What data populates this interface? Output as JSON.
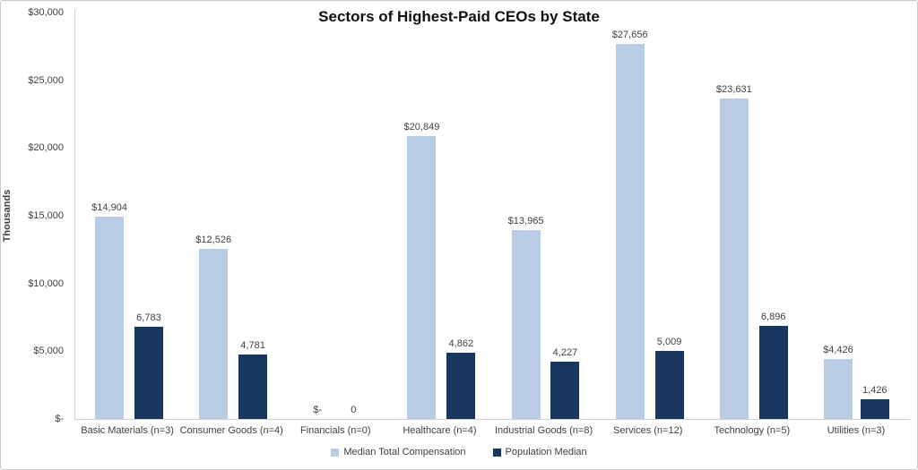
{
  "chart_data": {
    "type": "bar",
    "title": "Sectors of Highest-Paid CEOs by State",
    "xlabel": "",
    "ylabel": "Thousands",
    "ylim": [
      0,
      30000
    ],
    "grid": false,
    "legend_position": "bottom",
    "yticks": [
      {
        "label": "$30,000",
        "value": 30000
      },
      {
        "label": "$25,000",
        "value": 25000
      },
      {
        "label": "$20,000",
        "value": 20000
      },
      {
        "label": "$15,000",
        "value": 15000
      },
      {
        "label": "$10,000",
        "value": 10000
      },
      {
        "label": "$5,000",
        "value": 5000
      },
      {
        "label": "$-",
        "value": 0
      }
    ],
    "categories": [
      "Basic Materials (n=3)",
      "Consumer Goods (n=4)",
      "Financials (n=0)",
      "Healthcare (n=4)",
      "Industrial Goods (n=8)",
      "Services (n=12)",
      "Technology (n=5)",
      "Utilities (n=3)"
    ],
    "series": [
      {
        "name": "Median Total Compensation",
        "color": "#b8cce4",
        "values": [
          14904,
          12526,
          0,
          20849,
          13965,
          27656,
          23631,
          4426
        ],
        "labels": [
          "$14,904",
          "$12,526",
          "$-",
          "$20,849",
          "$13,965",
          "$27,656",
          "$23,631",
          "$4,426"
        ]
      },
      {
        "name": "Population Median",
        "color": "#17375e",
        "values": [
          6783,
          4781,
          0,
          4862,
          4227,
          5009,
          6896,
          1426
        ],
        "labels": [
          "6,783",
          "4,781",
          "0",
          "4,862",
          "4,227",
          "5,009",
          "6,896",
          "1,426"
        ]
      }
    ],
    "colors": {
      "axis_line": "#d1d1d1",
      "text": "#3f3f3f",
      "title_text": "#111111"
    }
  }
}
